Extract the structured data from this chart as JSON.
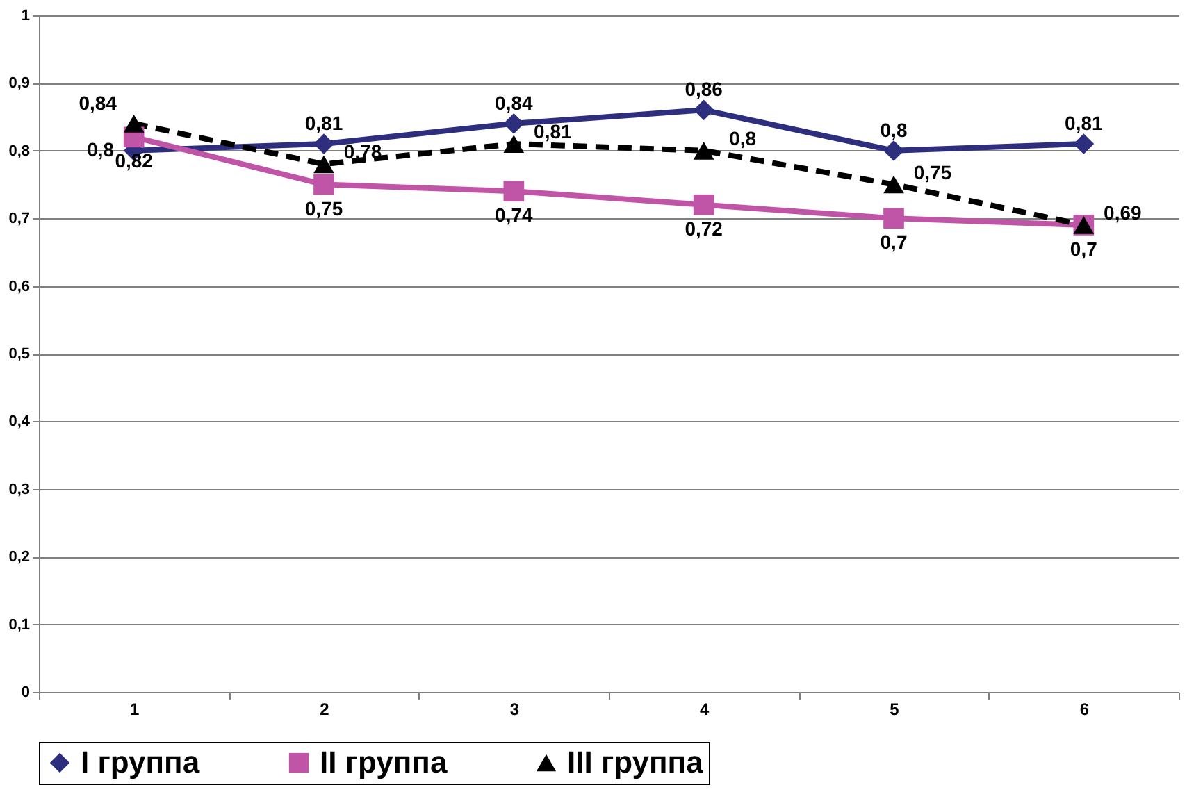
{
  "chart_data": {
    "type": "line",
    "categories": [
      "1",
      "2",
      "3",
      "4",
      "5",
      "6"
    ],
    "series": [
      {
        "name": "I группа",
        "color": "#2e2e7e",
        "marker": "diamond",
        "line_style": "solid",
        "values": [
          0.8,
          0.81,
          0.84,
          0.86,
          0.8,
          0.81
        ],
        "value_labels": [
          "0,8",
          "0,81",
          "0,84",
          "0,86",
          "0,8",
          "0,81"
        ]
      },
      {
        "name": "II группа",
        "color": "#c055a8",
        "marker": "square",
        "line_style": "solid",
        "values": [
          0.82,
          0.75,
          0.74,
          0.72,
          0.7,
          0.69
        ],
        "value_labels": [
          "0,82",
          "0,75",
          "0,74",
          "0,72",
          "0,7",
          "0,7"
        ]
      },
      {
        "name": "III группа",
        "color": "#000000",
        "marker": "triangle",
        "line_style": "dashed",
        "values": [
          0.84,
          0.78,
          0.81,
          0.8,
          0.75,
          0.69
        ],
        "value_labels": [
          "0,84",
          "0,78",
          "0,81",
          "0,8",
          "0,75",
          "0,69"
        ]
      }
    ],
    "ylim": [
      0,
      1
    ],
    "yticks": [
      0,
      {
        "value": 0.1,
        "label": "0,1"
      },
      {
        "value": 0.2,
        "label": "0,2"
      },
      {
        "value": 0.3,
        "label": "0,3"
      },
      {
        "value": 0.4,
        "label": "0,4"
      },
      {
        "value": 0.5,
        "label": "0,5"
      },
      {
        "value": 0.6,
        "label": "0,6"
      },
      {
        "value": 0.7,
        "label": "0,7"
      },
      {
        "value": 0.8,
        "label": "0,8"
      },
      {
        "value": 0.9,
        "label": "0,9"
      },
      1
    ],
    "grid": "y",
    "legend": "bottom"
  }
}
